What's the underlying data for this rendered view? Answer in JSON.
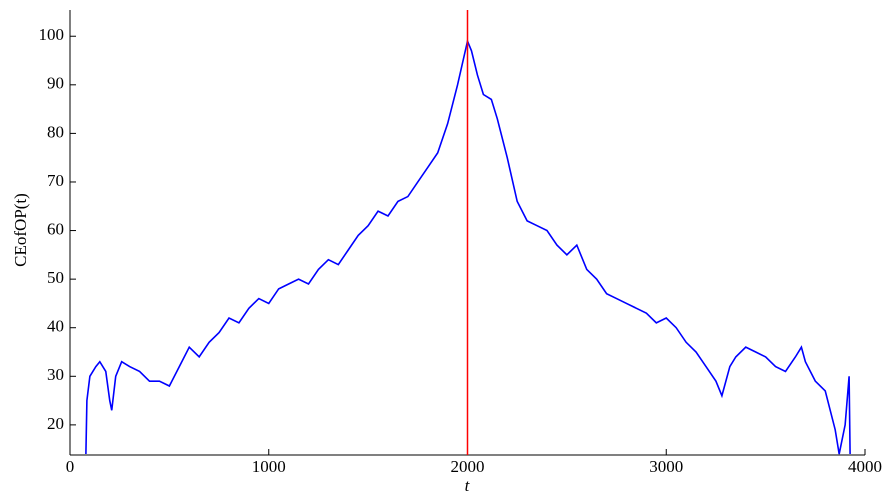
{
  "chart_data": {
    "type": "line",
    "y_label": "CEofOP(t)",
    "x_label": "t",
    "x": [
      80,
      85,
      100,
      130,
      150,
      180,
      200,
      210,
      230,
      260,
      300,
      350,
      400,
      450,
      500,
      550,
      600,
      650,
      700,
      750,
      800,
      850,
      900,
      950,
      1000,
      1050,
      1100,
      1150,
      1200,
      1250,
      1300,
      1350,
      1400,
      1450,
      1500,
      1550,
      1600,
      1650,
      1700,
      1750,
      1800,
      1850,
      1900,
      1950,
      2000,
      2020,
      2050,
      2080,
      2120,
      2150,
      2200,
      2250,
      2300,
      2350,
      2400,
      2450,
      2500,
      2550,
      2600,
      2650,
      2700,
      2750,
      2800,
      2850,
      2900,
      2950,
      3000,
      3050,
      3100,
      3150,
      3200,
      3250,
      3280,
      3320,
      3350,
      3400,
      3450,
      3500,
      3550,
      3600,
      3650,
      3680,
      3700,
      3750,
      3800,
      3850,
      3870,
      3900,
      3920,
      3925
    ],
    "series": [
      {
        "color": "#0000ff",
        "values": [
          14,
          25,
          30,
          32,
          33,
          31,
          25,
          23,
          30,
          33,
          32,
          31,
          29,
          29,
          28,
          32,
          36,
          34,
          37,
          39,
          42,
          41,
          44,
          46,
          45,
          48,
          49,
          50,
          49,
          52,
          54,
          53,
          56,
          59,
          61,
          64,
          63,
          66,
          67,
          70,
          73,
          76,
          82,
          90,
          99,
          97,
          92,
          88,
          87,
          83,
          75,
          66,
          62,
          61,
          60,
          57,
          55,
          57,
          52,
          50,
          47,
          46,
          45,
          44,
          43,
          41,
          42,
          40,
          37,
          35,
          32,
          29,
          26,
          32,
          34,
          36,
          35,
          34,
          32,
          31,
          34,
          36,
          33,
          29,
          27,
          19,
          14,
          20,
          30,
          14
        ]
      }
    ],
    "marker_x": 2000,
    "marker_color": "#ff0000",
    "xlim": [
      0,
      4000
    ],
    "xticks": [
      0,
      1000,
      2000,
      3000,
      4000
    ],
    "ylim": [
      13.8,
      105.4
    ],
    "yticks": [
      20,
      30,
      40,
      50,
      60,
      70,
      80,
      90,
      100
    ]
  }
}
